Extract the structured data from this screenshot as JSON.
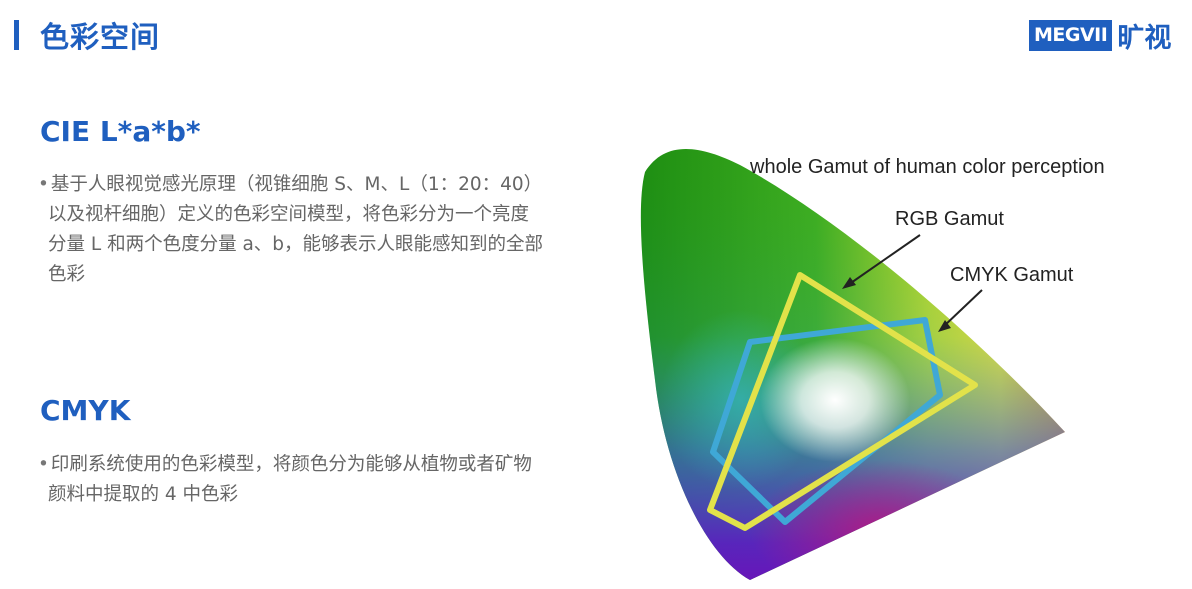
{
  "header": {
    "title": "色彩空间",
    "logo_brand": "MEGVII",
    "logo_cn": "旷视",
    "accent_color": "#1f5fbf"
  },
  "sections": [
    {
      "heading": "CIE L*a*b*",
      "bullet": "•",
      "lines": [
        "基于人眼视觉感光原理（视锥细胞 S、M、L（1：20：40）",
        "以及视杆细胞）定义的色彩空间模型，将色彩分为一个亮度",
        "分量 L 和两个色度分量 a、b，能够表示人眼能感知到的全部",
        "色彩"
      ]
    },
    {
      "heading": "CMYK",
      "bullet": "•",
      "lines": [
        "印刷系统使用的色彩模型，将颜色分为能够从植物或者矿物",
        "颜料中提取的 4 中色彩"
      ]
    }
  ],
  "diagram": {
    "labels": {
      "whole_gamut": "whole Gamut of human color perception",
      "rgb": "RGB Gamut",
      "cmyk": "CMYK Gamut"
    },
    "colors": {
      "rgb_outline": "#e2e24a",
      "cmyk_outline": "#3fa8d6"
    }
  }
}
